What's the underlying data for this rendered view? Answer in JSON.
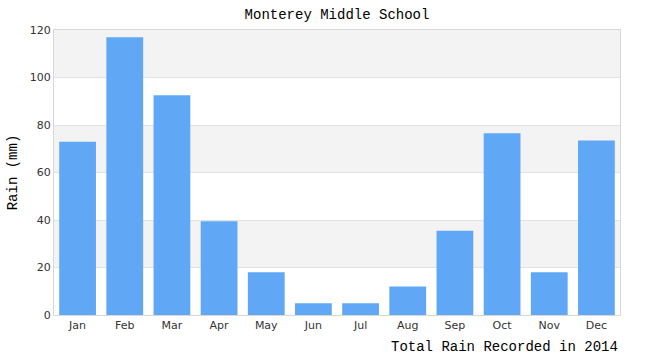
{
  "chart_data": {
    "type": "bar",
    "title": "Monterey Middle School",
    "y_label": "Rain (mm)",
    "x_label": "Total Rain Recorded in 2014",
    "categories": [
      "Jan",
      "Feb",
      "Mar",
      "Apr",
      "May",
      "Jun",
      "Jul",
      "Aug",
      "Sep",
      "Oct",
      "Nov",
      "Dec"
    ],
    "values": [
      73,
      117,
      92.5,
      39.5,
      18,
      5,
      5,
      12,
      35.5,
      76.5,
      18,
      73.5
    ],
    "color": "#60a8f5",
    "ylim": [
      0,
      120
    ],
    "yticks": [
      0,
      20,
      40,
      60,
      80,
      100,
      120
    ],
    "grid": true
  }
}
